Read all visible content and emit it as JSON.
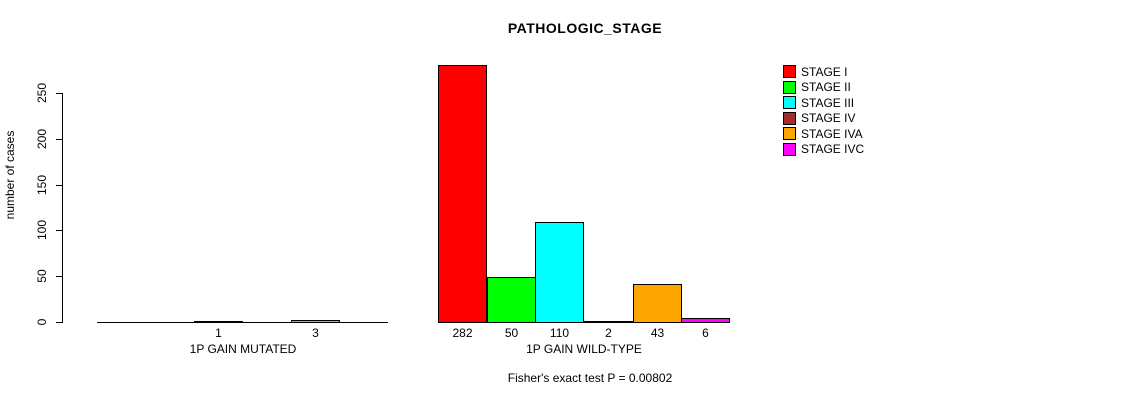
{
  "chart_data": {
    "type": "bar",
    "title": "PATHOLOGIC_STAGE",
    "ylabel": "number of cases",
    "ylim": [
      0,
      250
    ],
    "yticks": [
      0,
      50,
      100,
      150,
      200,
      250
    ],
    "grid": false,
    "legend_position": "right",
    "categories": [
      "1P GAIN MUTATED",
      "1P GAIN WILD-TYPE"
    ],
    "series": [
      {
        "name": "STAGE I",
        "color": "#FF0000",
        "values": [
          0,
          282
        ]
      },
      {
        "name": "STAGE II",
        "color": "#00FF00",
        "values": [
          0,
          50
        ]
      },
      {
        "name": "STAGE III",
        "color": "#00FFFF",
        "values": [
          1,
          110
        ]
      },
      {
        "name": "STAGE IV",
        "color": "#A52A2A",
        "values": [
          0,
          2
        ]
      },
      {
        "name": "STAGE IVA",
        "color": "#FFA500",
        "values": [
          3,
          43
        ]
      },
      {
        "name": "STAGE IVC",
        "color": "#FF00FF",
        "values": [
          0,
          6
        ]
      }
    ],
    "annotation": "Fisher's exact test P = 0.00802"
  }
}
